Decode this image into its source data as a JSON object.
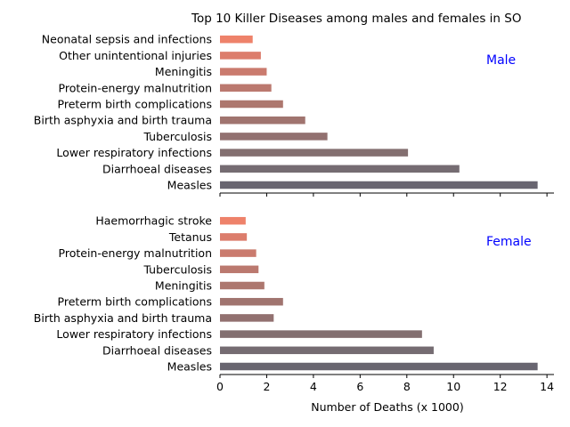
{
  "chart_data": {
    "type": "bar",
    "orientation": "horizontal",
    "title": "Top 10 Killer Diseases among males and females in SO",
    "xlabel": "Number of Deaths (x 1000)",
    "xlim": [
      0,
      14.3
    ],
    "xticks": [
      "0",
      "2",
      "4",
      "6",
      "8",
      "10",
      "12",
      "14"
    ],
    "grid": false,
    "panel_label_color": "#0000ff",
    "bar_colors": [
      "#686570",
      "#756c72",
      "#836f70",
      "#927170",
      "#a0746f",
      "#ad776e",
      "#bb796f",
      "#ca7b6e",
      "#dc7d6c",
      "#ee826a"
    ],
    "panels": [
      {
        "label": "Male",
        "categories": [
          "Measles",
          "Diarrhoeal diseases",
          "Lower respiratory infections",
          "Tuberculosis",
          "Birth asphyxia and birth trauma",
          "Preterm birth complications",
          "Protein-energy malnutrition",
          "Meningitis",
          "Other unintentional injuries",
          "Neonatal sepsis and infections"
        ],
        "values": [
          13.6,
          10.25,
          8.05,
          4.6,
          3.65,
          2.7,
          2.2,
          2.0,
          1.75,
          1.4
        ]
      },
      {
        "label": "Female",
        "categories": [
          "Measles",
          "Diarrhoeal diseases",
          "Lower respiratory infections",
          "Birth asphyxia and birth trauma",
          "Preterm birth complications",
          "Meningitis",
          "Tuberculosis",
          "Protein-energy malnutrition",
          "Tetanus",
          "Haemorrhagic stroke"
        ],
        "values": [
          13.6,
          9.15,
          8.65,
          2.3,
          2.7,
          1.9,
          1.65,
          1.55,
          1.15,
          1.1
        ]
      }
    ]
  }
}
